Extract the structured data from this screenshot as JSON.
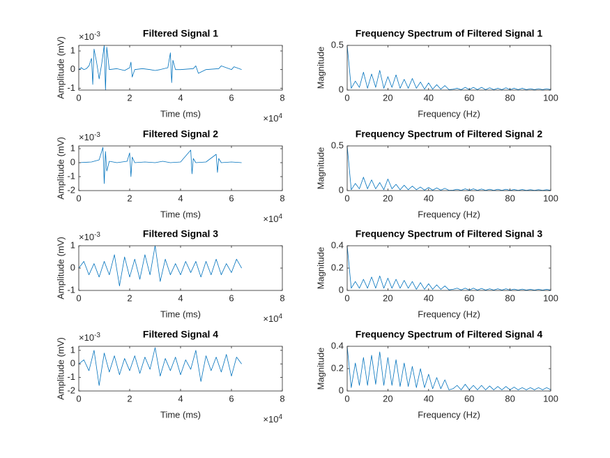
{
  "chart_data": [
    {
      "type": "line",
      "title": "Filtered Signal 1",
      "xlabel": "Time (ms)",
      "ylabel": "Amplitude (mV)",
      "color": "#0072bd",
      "y_multiplier": [
        "×10",
        "-3"
      ],
      "x_multiplier": [
        "×10",
        "4"
      ],
      "xlim": [
        0,
        8
      ],
      "xticks": [
        0,
        2,
        4,
        6,
        8
      ],
      "ylim": [
        -1.1,
        1.3
      ],
      "yticks": [
        -1,
        0,
        1
      ],
      "x": [
        0,
        0.1,
        0.2,
        0.3,
        0.4,
        0.5,
        0.55,
        0.6,
        0.7,
        0.8,
        0.9,
        1.0,
        1.05,
        1.1,
        1.2,
        1.5,
        1.8,
        2.0,
        2.05,
        2.1,
        2.2,
        2.5,
        2.8,
        3.0,
        3.2,
        3.5,
        3.6,
        3.65,
        3.7,
        3.8,
        4.0,
        4.5,
        4.6,
        4.7,
        5.0,
        5.5,
        5.6,
        6.0,
        6.1,
        6.4
      ],
      "values": [
        0,
        0.1,
        0,
        0.05,
        0.2,
        0.6,
        -0.8,
        1.1,
        0.4,
        -0.5,
        0.3,
        1.3,
        -1.1,
        1.2,
        0,
        0.05,
        -0.05,
        0.1,
        0.4,
        -0.4,
        0,
        0.05,
        0,
        -0.05,
        0,
        0.1,
        0.9,
        -0.7,
        0.5,
        0,
        0,
        0.05,
        0.2,
        -0.2,
        0,
        0.05,
        0.2,
        0,
        0.15,
        0
      ]
    },
    {
      "type": "line",
      "title": "Frequency Spectrum of Filtered Signal 1",
      "xlabel": "Frequency (Hz)",
      "ylabel": "Magnitude",
      "color": "#0072bd",
      "xlim": [
        0,
        100
      ],
      "xticks": [
        0,
        20,
        40,
        60,
        80,
        100
      ],
      "ylim": [
        0,
        0.5
      ],
      "yticks": [
        0,
        0.5
      ],
      "x": [
        0,
        2,
        4,
        6,
        8,
        10,
        12,
        14,
        16,
        18,
        20,
        22,
        24,
        26,
        28,
        30,
        32,
        34,
        36,
        38,
        40,
        42,
        44,
        46,
        48,
        50,
        52,
        54,
        56,
        58,
        60,
        62,
        64,
        66,
        68,
        70,
        72,
        74,
        76,
        78,
        80,
        82,
        84,
        86,
        88,
        90,
        92,
        94,
        96,
        98,
        100
      ],
      "values": [
        0.5,
        0.02,
        0.1,
        0.03,
        0.2,
        0.02,
        0.18,
        0.03,
        0.22,
        0.02,
        0.15,
        0.03,
        0.17,
        0.02,
        0.12,
        0.02,
        0.13,
        0.02,
        0.09,
        0.01,
        0.08,
        0.01,
        0.06,
        0.01,
        0.05,
        0.005,
        0.01,
        0.02,
        0.005,
        0.03,
        0.005,
        0.03,
        0.005,
        0.03,
        0.005,
        0.025,
        0.005,
        0.02,
        0.005,
        0.025,
        0.005,
        0.02,
        0.005,
        0.02,
        0.005,
        0.015,
        0.005,
        0.015,
        0.005,
        0.015,
        0.005
      ]
    },
    {
      "type": "line",
      "title": "Filtered Signal 2",
      "xlabel": "Time (ms)",
      "ylabel": "Amplitude (mV)",
      "color": "#0072bd",
      "y_multiplier": [
        "×10",
        "-3"
      ],
      "x_multiplier": [
        "×10",
        "4"
      ],
      "xlim": [
        0,
        8
      ],
      "xticks": [
        0,
        2,
        4,
        6,
        8
      ],
      "ylim": [
        -2,
        1.2
      ],
      "yticks": [
        -2,
        -1,
        0,
        1
      ],
      "x": [
        0,
        0.5,
        0.8,
        0.95,
        1.0,
        1.05,
        1.1,
        1.2,
        1.5,
        1.9,
        2.0,
        2.05,
        2.1,
        2.2,
        2.6,
        3.0,
        3.3,
        3.6,
        4.0,
        4.4,
        4.45,
        4.5,
        4.6,
        5.0,
        5.4,
        5.45,
        5.5,
        5.6,
        6.0,
        6.4
      ],
      "values": [
        0,
        0.05,
        0.2,
        1.1,
        -1.5,
        0.8,
        -0.6,
        0.1,
        0,
        0.1,
        0.7,
        -1.0,
        0.4,
        0,
        0.05,
        0,
        0.1,
        0,
        0.05,
        0.9,
        -0.8,
        0.3,
        0,
        0.05,
        0.6,
        -0.7,
        0.3,
        0,
        0.05,
        0
      ]
    },
    {
      "type": "line",
      "title": "Frequency Spectrum of Filtered Signal 2",
      "xlabel": "Frequency (Hz)",
      "ylabel": "Magnitude",
      "color": "#0072bd",
      "xlim": [
        0,
        100
      ],
      "xticks": [
        0,
        20,
        40,
        60,
        80,
        100
      ],
      "ylim": [
        0,
        0.5
      ],
      "yticks": [
        0,
        0.5
      ],
      "x": [
        0,
        2,
        4,
        6,
        8,
        10,
        12,
        14,
        16,
        18,
        20,
        22,
        24,
        26,
        28,
        30,
        32,
        34,
        36,
        38,
        40,
        42,
        44,
        46,
        48,
        50,
        52,
        54,
        56,
        58,
        60,
        62,
        64,
        66,
        68,
        70,
        72,
        74,
        76,
        78,
        80,
        82,
        84,
        86,
        88,
        90,
        92,
        94,
        96,
        98,
        100
      ],
      "values": [
        0.5,
        0.01,
        0.08,
        0.02,
        0.15,
        0.02,
        0.12,
        0.02,
        0.09,
        0.01,
        0.13,
        0.02,
        0.07,
        0.01,
        0.06,
        0.01,
        0.05,
        0.01,
        0.04,
        0.005,
        0.035,
        0.005,
        0.03,
        0.005,
        0.025,
        0.003,
        0.005,
        0.015,
        0.003,
        0.02,
        0.003,
        0.02,
        0.003,
        0.018,
        0.003,
        0.015,
        0.003,
        0.015,
        0.003,
        0.015,
        0.003,
        0.012,
        0.003,
        0.012,
        0.003,
        0.01,
        0.003,
        0.01,
        0.003,
        0.01,
        0.003
      ]
    },
    {
      "type": "line",
      "title": "Filtered Signal 3",
      "xlabel": "Time (ms)",
      "ylabel": "Amplitude (mV)",
      "color": "#0072bd",
      "y_multiplier": [
        "×10",
        "-3"
      ],
      "x_multiplier": [
        "×10",
        "4"
      ],
      "xlim": [
        0,
        8
      ],
      "xticks": [
        0,
        2,
        4,
        6,
        8
      ],
      "ylim": [
        -1,
        1
      ],
      "yticks": [
        -1,
        0,
        1
      ],
      "x": [
        0,
        0.2,
        0.4,
        0.6,
        0.8,
        1.0,
        1.2,
        1.4,
        1.6,
        1.8,
        2.0,
        2.2,
        2.4,
        2.6,
        2.8,
        3.0,
        3.2,
        3.4,
        3.6,
        3.8,
        4.0,
        4.2,
        4.4,
        4.6,
        4.8,
        5.0,
        5.2,
        5.4,
        5.6,
        5.8,
        6.0,
        6.2,
        6.4
      ],
      "values": [
        0,
        0.3,
        -0.3,
        0.2,
        -0.4,
        0.3,
        -0.3,
        0.6,
        -0.8,
        0.5,
        -0.4,
        0.4,
        -0.5,
        0.6,
        -0.3,
        1.0,
        -0.6,
        0.4,
        -0.3,
        0.2,
        -0.3,
        0.3,
        -0.2,
        0.3,
        -0.4,
        0.3,
        -0.3,
        0.4,
        -0.3,
        0.2,
        -0.2,
        0.4,
        0
      ]
    },
    {
      "type": "line",
      "title": "Frequency Spectrum of Filtered Signal 3",
      "xlabel": "Frequency (Hz)",
      "ylabel": "Magnitude",
      "color": "#0072bd",
      "xlim": [
        0,
        100
      ],
      "xticks": [
        0,
        20,
        40,
        60,
        80,
        100
      ],
      "ylim": [
        0,
        0.4
      ],
      "yticks": [
        0,
        0.2,
        0.4
      ],
      "x": [
        0,
        2,
        4,
        6,
        8,
        10,
        12,
        14,
        16,
        18,
        20,
        22,
        24,
        26,
        28,
        30,
        32,
        34,
        36,
        38,
        40,
        42,
        44,
        46,
        48,
        50,
        52,
        54,
        56,
        58,
        60,
        62,
        64,
        66,
        68,
        70,
        72,
        74,
        76,
        78,
        80,
        82,
        84,
        86,
        88,
        90,
        92,
        94,
        96,
        98,
        100
      ],
      "values": [
        0.4,
        0.02,
        0.08,
        0.02,
        0.1,
        0.02,
        0.12,
        0.02,
        0.13,
        0.02,
        0.11,
        0.02,
        0.1,
        0.02,
        0.09,
        0.02,
        0.08,
        0.01,
        0.07,
        0.01,
        0.06,
        0.01,
        0.05,
        0.01,
        0.04,
        0.005,
        0.01,
        0.02,
        0.005,
        0.02,
        0.003,
        0.02,
        0.003,
        0.018,
        0.003,
        0.015,
        0.003,
        0.015,
        0.003,
        0.015,
        0.003,
        0.012,
        0.003,
        0.012,
        0.003,
        0.01,
        0.003,
        0.01,
        0.003,
        0.01,
        0.003
      ]
    },
    {
      "type": "line",
      "title": "Filtered Signal 4",
      "xlabel": "Time (ms)",
      "ylabel": "Amplitude (mV)",
      "color": "#0072bd",
      "y_multiplier": [
        "×10",
        "-3"
      ],
      "x_multiplier": [
        "×10",
        "4"
      ],
      "xlim": [
        0,
        8
      ],
      "xticks": [
        0,
        2,
        4,
        6,
        8
      ],
      "ylim": [
        -2,
        1.3
      ],
      "yticks": [
        -2,
        -1,
        0,
        1
      ],
      "x": [
        0,
        0.2,
        0.4,
        0.6,
        0.8,
        1.0,
        1.2,
        1.4,
        1.6,
        1.8,
        2.0,
        2.2,
        2.4,
        2.6,
        2.8,
        3.0,
        3.2,
        3.4,
        3.6,
        3.8,
        4.0,
        4.2,
        4.4,
        4.6,
        4.8,
        5.0,
        5.2,
        5.4,
        5.6,
        5.8,
        6.0,
        6.2,
        6.4
      ],
      "values": [
        0,
        0.3,
        -0.5,
        1.0,
        -1.6,
        0.8,
        -0.6,
        0.6,
        -0.8,
        0.4,
        -0.5,
        0.6,
        -0.7,
        0.5,
        -0.4,
        1.2,
        -0.9,
        0.4,
        -0.5,
        0.5,
        -0.8,
        0.3,
        -0.4,
        1.0,
        -1.3,
        0.6,
        -0.5,
        0.5,
        -0.6,
        0.7,
        -0.9,
        0.5,
        0
      ]
    },
    {
      "type": "line",
      "title": "Frequency Spectrum of Filtered Signal 4",
      "xlabel": "Frequency (Hz)",
      "ylabel": "Magnitude",
      "color": "#0072bd",
      "xlim": [
        0,
        100
      ],
      "xticks": [
        0,
        20,
        40,
        60,
        80,
        100
      ],
      "ylim": [
        0,
        0.4
      ],
      "yticks": [
        0,
        0.2,
        0.4
      ],
      "x": [
        0,
        2,
        4,
        6,
        8,
        10,
        12,
        14,
        16,
        18,
        20,
        22,
        24,
        26,
        28,
        30,
        32,
        34,
        36,
        38,
        40,
        42,
        44,
        46,
        48,
        50,
        52,
        54,
        56,
        58,
        60,
        62,
        64,
        66,
        68,
        70,
        72,
        74,
        76,
        78,
        80,
        82,
        84,
        86,
        88,
        90,
        92,
        94,
        96,
        98,
        100
      ],
      "values": [
        0.4,
        0.03,
        0.25,
        0.05,
        0.3,
        0.05,
        0.32,
        0.06,
        0.35,
        0.05,
        0.3,
        0.05,
        0.28,
        0.04,
        0.25,
        0.04,
        0.22,
        0.03,
        0.2,
        0.03,
        0.15,
        0.02,
        0.12,
        0.02,
        0.1,
        0.01,
        0.02,
        0.05,
        0.01,
        0.06,
        0.01,
        0.05,
        0.01,
        0.05,
        0.01,
        0.045,
        0.01,
        0.04,
        0.01,
        0.04,
        0.01,
        0.035,
        0.01,
        0.03,
        0.01,
        0.03,
        0.01,
        0.03,
        0.01,
        0.03,
        0.01
      ]
    }
  ]
}
